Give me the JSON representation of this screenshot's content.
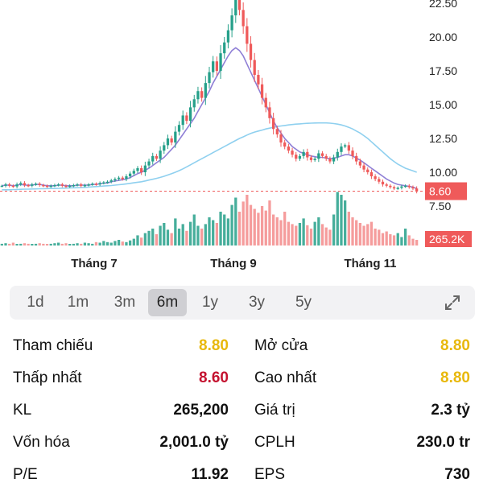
{
  "chart_data": {
    "type": "candlestick",
    "x_labels": [
      "Tháng 7",
      "Tháng 9",
      "Tháng 11"
    ],
    "y_ticks": [
      "22.50",
      "20.00",
      "17.50",
      "15.00",
      "12.50",
      "10.00",
      "7.50"
    ],
    "ylim": [
      7.5,
      23
    ],
    "closes": [
      9.0,
      9.1,
      9.0,
      8.95,
      9.1,
      9.2,
      9.05,
      9.0,
      9.1,
      9.15,
      9.05,
      9.0,
      8.95,
      9.0,
      9.05,
      9.1,
      9.0,
      8.95,
      9.0,
      9.05,
      9.1,
      9.0,
      9.05,
      9.1,
      9.15,
      9.1,
      9.2,
      9.25,
      9.3,
      9.4,
      9.5,
      9.6,
      9.5,
      9.7,
      9.9,
      10.1,
      10.3,
      10.0,
      10.5,
      10.8,
      11.2,
      11.0,
      11.6,
      12.0,
      12.5,
      12.2,
      13.0,
      13.5,
      14.2,
      13.8,
      14.8,
      15.4,
      16.0,
      15.5,
      16.6,
      17.4,
      18.2,
      17.5,
      18.8,
      19.6,
      20.5,
      21.6,
      22.8,
      22.0,
      20.8,
      19.5,
      18.3,
      17.2,
      16.5,
      15.5,
      14.8,
      14.0,
      13.2,
      12.8,
      12.2,
      11.9,
      11.6,
      11.3,
      11.0,
      11.2,
      11.5,
      11.1,
      10.9,
      11.0,
      11.4,
      11.2,
      11.0,
      10.8,
      11.1,
      11.5,
      11.9,
      12.0,
      11.6,
      11.2,
      10.8,
      10.5,
      10.2,
      10.0,
      9.7,
      9.5,
      9.3,
      9.1,
      9.0,
      8.9,
      8.8,
      8.85,
      8.95,
      9.0,
      8.9,
      8.8,
      8.6
    ],
    "ma_short": [
      9.0,
      9.05,
      9.05,
      9.0,
      9.05,
      9.1,
      9.05,
      9.05,
      9.05,
      9.1,
      9.1,
      9.05,
      9.0,
      9.0,
      9.0,
      9.05,
      9.05,
      9.0,
      9.0,
      9.0,
      9.05,
      9.05,
      9.05,
      9.05,
      9.1,
      9.1,
      9.15,
      9.2,
      9.2,
      9.3,
      9.35,
      9.4,
      9.45,
      9.5,
      9.6,
      9.75,
      9.9,
      10.0,
      10.15,
      10.3,
      10.5,
      10.7,
      10.9,
      11.1,
      11.4,
      11.7,
      12.0,
      12.4,
      12.8,
      13.2,
      13.6,
      14.0,
      14.5,
      15.0,
      15.5,
      16.0,
      16.6,
      17.1,
      17.6,
      18.1,
      18.6,
      19.0,
      19.2,
      19.0,
      18.6,
      18.0,
      17.4,
      16.8,
      16.2,
      15.6,
      15.0,
      14.4,
      13.8,
      13.3,
      12.9,
      12.5,
      12.2,
      11.9,
      11.7,
      11.5,
      11.4,
      11.3,
      11.2,
      11.15,
      11.1,
      11.1,
      11.05,
      11.0,
      11.05,
      11.1,
      11.2,
      11.3,
      11.3,
      11.2,
      11.05,
      10.9,
      10.7,
      10.5,
      10.3,
      10.1,
      9.9,
      9.7,
      9.5,
      9.35,
      9.2,
      9.1,
      9.05,
      9.0,
      8.95,
      8.9,
      8.8
    ],
    "ma_long": [
      8.7,
      8.7,
      8.7,
      8.72,
      8.72,
      8.74,
      8.75,
      8.75,
      8.76,
      8.77,
      8.78,
      8.78,
      8.79,
      8.8,
      8.8,
      8.81,
      8.82,
      8.83,
      8.84,
      8.85,
      8.86,
      8.87,
      8.88,
      8.9,
      8.92,
      8.94,
      8.96,
      8.98,
      9.0,
      9.02,
      9.05,
      9.08,
      9.1,
      9.14,
      9.18,
      9.22,
      9.26,
      9.3,
      9.36,
      9.42,
      9.48,
      9.55,
      9.62,
      9.7,
      9.8,
      9.9,
      10.0,
      10.12,
      10.25,
      10.4,
      10.55,
      10.7,
      10.85,
      11.0,
      11.15,
      11.3,
      11.45,
      11.6,
      11.75,
      11.9,
      12.05,
      12.2,
      12.35,
      12.5,
      12.62,
      12.75,
      12.87,
      12.97,
      13.05,
      13.12,
      13.2,
      13.26,
      13.32,
      13.38,
      13.42,
      13.46,
      13.5,
      13.53,
      13.56,
      13.58,
      13.6,
      13.62,
      13.63,
      13.64,
      13.65,
      13.65,
      13.65,
      13.63,
      13.6,
      13.56,
      13.5,
      13.42,
      13.32,
      13.2,
      13.05,
      12.9,
      12.7,
      12.5,
      12.25,
      12.0,
      11.75,
      11.5,
      11.25,
      11.0,
      10.8,
      10.6,
      10.45,
      10.3,
      10.2,
      10.1,
      10.0
    ],
    "volume": [
      0.03,
      0.04,
      0.03,
      0.05,
      0.02,
      0.03,
      0.04,
      0.03,
      0.02,
      0.03,
      0.04,
      0.03,
      0.02,
      0.03,
      0.04,
      0.05,
      0.03,
      0.04,
      0.02,
      0.03,
      0.04,
      0.03,
      0.05,
      0.04,
      0.03,
      0.06,
      0.05,
      0.08,
      0.06,
      0.05,
      0.08,
      0.1,
      0.07,
      0.06,
      0.09,
      0.12,
      0.18,
      0.14,
      0.22,
      0.26,
      0.3,
      0.2,
      0.35,
      0.4,
      0.28,
      0.22,
      0.48,
      0.3,
      0.38,
      0.26,
      0.42,
      0.55,
      0.35,
      0.3,
      0.38,
      0.5,
      0.45,
      0.4,
      0.6,
      0.55,
      0.48,
      0.72,
      0.85,
      0.6,
      0.78,
      0.9,
      0.72,
      0.65,
      0.58,
      0.7,
      0.62,
      0.8,
      0.55,
      0.5,
      0.45,
      0.6,
      0.42,
      0.38,
      0.35,
      0.4,
      0.48,
      0.36,
      0.3,
      0.42,
      0.5,
      0.38,
      0.32,
      0.28,
      0.55,
      0.95,
      0.9,
      0.8,
      0.6,
      0.5,
      0.45,
      0.4,
      0.35,
      0.38,
      0.42,
      0.3,
      0.28,
      0.22,
      0.25,
      0.2,
      0.18,
      0.22,
      0.15,
      0.3,
      0.18,
      0.12,
      0.1
    ],
    "current_price": "8.60",
    "current_volume": "265.2K",
    "reference_price": 8.8,
    "colors": {
      "up": "#26a08a",
      "down": "#ef5a5a",
      "ma_short": "#8f7fd6",
      "ma_long": "#8fd0ef",
      "tag": "#ef5a5a"
    }
  },
  "range_tabs": [
    {
      "label": "1d"
    },
    {
      "label": "1m"
    },
    {
      "label": "3m"
    },
    {
      "label": "6m"
    },
    {
      "label": "1y"
    },
    {
      "label": "3y"
    },
    {
      "label": "5y"
    }
  ],
  "active_range": "6m",
  "stats": {
    "left": [
      {
        "label": "Tham chiếu",
        "value": "8.80",
        "color": "yellow"
      },
      {
        "label": "Thấp nhất",
        "value": "8.60",
        "color": "red"
      },
      {
        "label": "KL",
        "value": "265,200",
        "color": ""
      },
      {
        "label": "Vốn hóa",
        "value": "2,001.0 tỷ",
        "color": ""
      },
      {
        "label": "P/E",
        "value": "11.92",
        "color": ""
      }
    ],
    "right": [
      {
        "label": "Mở cửa",
        "value": "8.80",
        "color": "yellow"
      },
      {
        "label": "Cao nhất",
        "value": "8.80",
        "color": "yellow"
      },
      {
        "label": "Giá trị",
        "value": "2.3 tỷ",
        "color": ""
      },
      {
        "label": "CPLH",
        "value": "230.0 tr",
        "color": ""
      },
      {
        "label": "EPS",
        "value": "730",
        "color": ""
      }
    ]
  },
  "icons": {
    "expand": "expand-arrows-icon"
  }
}
